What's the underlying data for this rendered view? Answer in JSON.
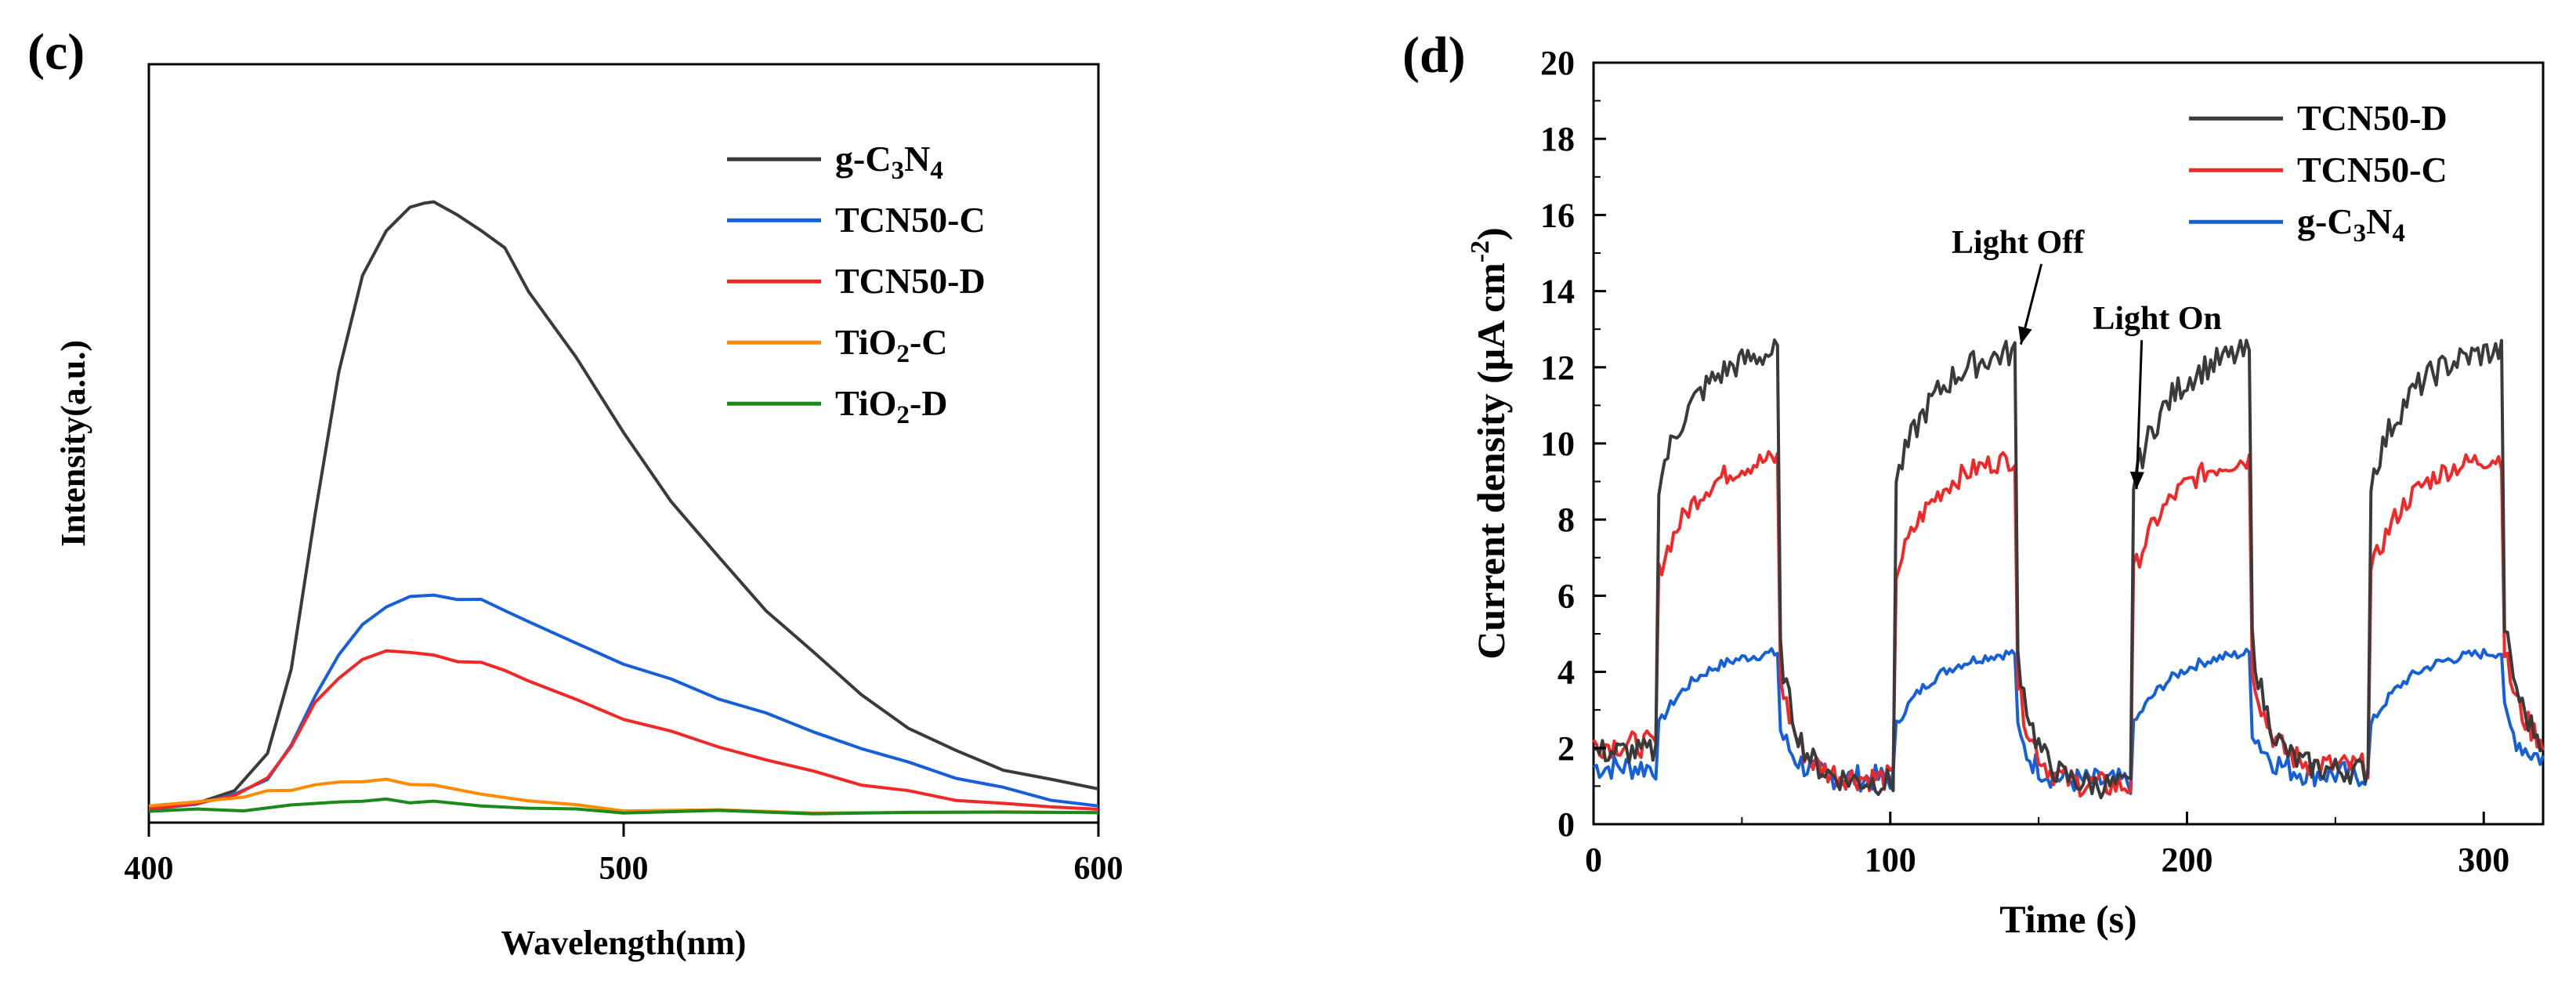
{
  "colors": {
    "dark": "#3a3a3a",
    "blue": "#1560d8",
    "red": "#f02828",
    "orange": "#ff8c00",
    "green": "#1a8a1a",
    "axis": "#000000"
  },
  "chart_data": [
    {
      "type": "line",
      "panel_label": "(c)",
      "xlabel": "Wavelength(nm)",
      "ylabel": "Intensity(a.u.)",
      "xlim": [
        400,
        600
      ],
      "ylim": [
        0,
        100
      ],
      "xticks": [
        "400",
        "500",
        "600"
      ],
      "legend_position": "top-right",
      "series": [
        {
          "name": "g-C3N4",
          "label_main": "g-C",
          "sub1": "3",
          "mid": "N",
          "sub2": "4",
          "tail": "",
          "color_key": "dark",
          "x": [
            400,
            410,
            418,
            425,
            430,
            435,
            440,
            445,
            450,
            455,
            458,
            460,
            465,
            470,
            475,
            480,
            490,
            500,
            510,
            520,
            530,
            540,
            550,
            560,
            570,
            580,
            590,
            600
          ],
          "y": [
            1.5,
            2.5,
            4,
            10,
            22,
            45,
            66,
            80,
            87,
            90,
            91,
            91,
            89,
            87,
            84,
            78,
            68,
            57,
            47,
            38.5,
            31,
            24.5,
            18.5,
            13.5,
            10,
            7.5,
            5.7,
            4.5
          ]
        },
        {
          "name": "TCN50-C",
          "label_main": "TCN50-C",
          "sub1": "",
          "mid": "",
          "sub2": "",
          "tail": "",
          "color_key": "blue",
          "x": [
            400,
            410,
            418,
            425,
            430,
            435,
            440,
            445,
            450,
            455,
            460,
            465,
            470,
            475,
            480,
            490,
            500,
            510,
            520,
            530,
            540,
            550,
            560,
            570,
            580,
            590,
            600
          ],
          "y": [
            1.5,
            2.5,
            3.5,
            6,
            11,
            18,
            24.5,
            28.5,
            31.5,
            32.8,
            33,
            32.6,
            32.2,
            31,
            29,
            26,
            23,
            20.5,
            18,
            15.5,
            13,
            10.5,
            8.3,
            6.3,
            4.5,
            3,
            2
          ]
        },
        {
          "name": "TCN50-D",
          "label_main": "TCN50-D",
          "sub1": "",
          "mid": "",
          "sub2": "",
          "tail": "",
          "color_key": "red",
          "x": [
            400,
            410,
            418,
            425,
            430,
            435,
            440,
            445,
            450,
            455,
            460,
            465,
            470,
            475,
            480,
            490,
            500,
            510,
            520,
            530,
            540,
            550,
            560,
            570,
            580,
            590,
            600
          ],
          "y": [
            1.5,
            2.5,
            3.5,
            6,
            11,
            17,
            21,
            23.5,
            24.8,
            24.8,
            24,
            23.5,
            23,
            22,
            20.5,
            17.5,
            15,
            12.8,
            10.8,
            8.8,
            7,
            5.3,
            4,
            3,
            2.3,
            1.8,
            1.5
          ]
        },
        {
          "name": "TiO2-C",
          "label_main": "TiO",
          "sub1": "2",
          "mid": "-C",
          "sub2": "",
          "tail": "",
          "color_key": "orange",
          "x": [
            400,
            410,
            420,
            425,
            430,
            435,
            440,
            445,
            450,
            455,
            460,
            470,
            480,
            490,
            500,
            520,
            540,
            560,
            580,
            600
          ],
          "y": [
            2,
            2.5,
            3.5,
            4,
            4.5,
            5,
            5.5,
            5.7,
            5.7,
            5.4,
            4.9,
            3.8,
            2.8,
            2,
            1.5,
            1.2,
            1.1,
            1,
            1,
            1
          ]
        },
        {
          "name": "TiO2-D",
          "label_main": "TiO",
          "sub1": "2",
          "mid": "-D",
          "sub2": "",
          "tail": "",
          "color_key": "green",
          "x": [
            400,
            410,
            420,
            430,
            440,
            445,
            450,
            455,
            460,
            470,
            480,
            490,
            500,
            520,
            540,
            560,
            580,
            600
          ],
          "y": [
            1.2,
            1.3,
            1.5,
            2,
            2.6,
            2.8,
            2.8,
            2.7,
            2.5,
            2.1,
            1.7,
            1.4,
            1.2,
            1.1,
            1,
            1,
            1,
            1
          ]
        }
      ]
    },
    {
      "type": "line",
      "panel_label": "(d)",
      "xlabel": "Time (s)",
      "ylabel_prefix": "Current density (μA cm",
      "ylabel_sup": "-2",
      "ylabel_suffix": ")",
      "xlim": [
        0,
        320
      ],
      "ylim": [
        0,
        20
      ],
      "xticks": [
        "0",
        "100",
        "200",
        "300"
      ],
      "yticks": [
        "0",
        "2",
        "4",
        "6",
        "8",
        "10",
        "12",
        "14",
        "16",
        "18",
        "20"
      ],
      "legend_position": "top-right",
      "annotations": [
        {
          "text": "Light Off",
          "x": 143,
          "y": 15.0,
          "arrow_to_x": 144,
          "arrow_to_y": 12.6
        },
        {
          "text": "Light On",
          "x": 190,
          "y": 13.0,
          "arrow_to_x": 183,
          "arrow_to_y": 8.8
        }
      ],
      "cycles": {
        "on": [
          22,
          102,
          182,
          262
        ],
        "off": [
          63,
          143,
          222,
          307
        ]
      },
      "series": [
        {
          "name": "TCN50-D",
          "label_main": "TCN50-D",
          "sub1": "",
          "mid": "",
          "sub2": "",
          "color_key": "dark",
          "dark_level": [
            1.9,
            1.1,
            1.0,
            1.4,
            1.8
          ],
          "rise_start": 9.0,
          "plateau_end": 12.4
        },
        {
          "name": "TCN50-C",
          "label_main": "TCN50-C",
          "sub1": "",
          "mid": "",
          "sub2": "",
          "color_key": "red",
          "dark_level": [
            2.1,
            1.2,
            1.0,
            1.5,
            1.9
          ],
          "rise_start": 6.6,
          "plateau_end": 9.6
        },
        {
          "name": "g-C3N4",
          "label_main": "g-C",
          "sub1": "3",
          "mid": "N",
          "sub2": "4",
          "color_key": "blue",
          "dark_level": [
            1.5,
            1.2,
            1.1,
            1.3,
            1.6
          ],
          "rise_start": 2.6,
          "plateau_end": 4.5
        }
      ]
    }
  ]
}
